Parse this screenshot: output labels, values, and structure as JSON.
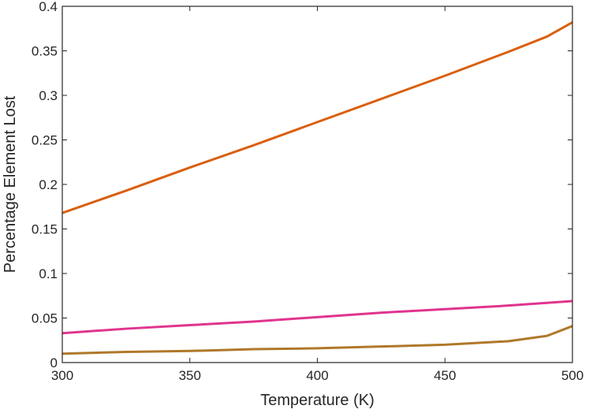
{
  "chart_data": {
    "type": "line",
    "title": "",
    "xlabel": "Temperature (K)",
    "ylabel": "Percentage Element Lost",
    "xlim": [
      300,
      500
    ],
    "ylim": [
      0,
      0.4
    ],
    "x_ticks": [
      300,
      350,
      400,
      450,
      500
    ],
    "x_tick_labels": [
      "300",
      "350",
      "400",
      "450",
      "500"
    ],
    "y_ticks": [
      0,
      0.05,
      0.1,
      0.15,
      0.2,
      0.25,
      0.3,
      0.35,
      0.4
    ],
    "y_tick_labels": [
      "0",
      "0.05",
      "0.1",
      "0.15",
      "0.2",
      "0.25",
      "0.3",
      "0.35",
      "0.4"
    ],
    "grid": false,
    "legend": "none",
    "x": [
      300,
      325,
      350,
      375,
      400,
      425,
      450,
      475,
      490,
      500
    ],
    "series": [
      {
        "color": "#D95F0E",
        "values": [
          0.168,
          0.193,
          0.219,
          0.244,
          0.27,
          0.296,
          0.322,
          0.349,
          0.366,
          0.382
        ]
      },
      {
        "color": "#E0348F",
        "values": [
          0.033,
          0.038,
          0.042,
          0.046,
          0.051,
          0.056,
          0.06,
          0.064,
          0.067,
          0.069
        ]
      },
      {
        "color": "#B0782A",
        "values": [
          0.01,
          0.012,
          0.013,
          0.015,
          0.016,
          0.018,
          0.02,
          0.024,
          0.03,
          0.041
        ]
      }
    ]
  }
}
